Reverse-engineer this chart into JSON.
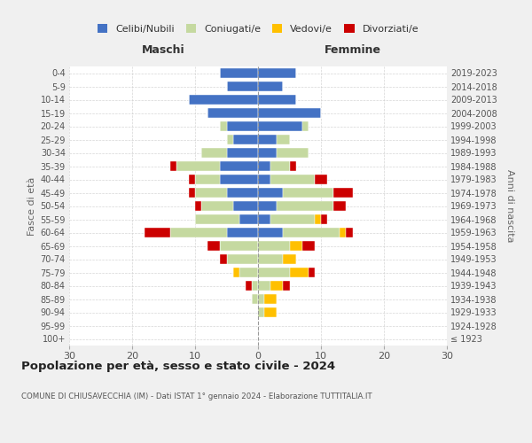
{
  "age_groups": [
    "100+",
    "95-99",
    "90-94",
    "85-89",
    "80-84",
    "75-79",
    "70-74",
    "65-69",
    "60-64",
    "55-59",
    "50-54",
    "45-49",
    "40-44",
    "35-39",
    "30-34",
    "25-29",
    "20-24",
    "15-19",
    "10-14",
    "5-9",
    "0-4"
  ],
  "birth_years": [
    "≤ 1923",
    "1924-1928",
    "1929-1933",
    "1934-1938",
    "1939-1943",
    "1944-1948",
    "1949-1953",
    "1954-1958",
    "1959-1963",
    "1964-1968",
    "1969-1973",
    "1974-1978",
    "1979-1983",
    "1984-1988",
    "1989-1993",
    "1994-1998",
    "1999-2003",
    "2004-2008",
    "2009-2013",
    "2014-2018",
    "2019-2023"
  ],
  "maschi": {
    "celibi": [
      0,
      0,
      0,
      0,
      0,
      0,
      0,
      0,
      5,
      3,
      4,
      5,
      6,
      6,
      5,
      4,
      5,
      8,
      11,
      5,
      6
    ],
    "coniugati": [
      0,
      0,
      0,
      1,
      1,
      3,
      5,
      6,
      9,
      7,
      5,
      5,
      4,
      7,
      4,
      1,
      1,
      0,
      0,
      0,
      0
    ],
    "vedovi": [
      0,
      0,
      0,
      0,
      0,
      1,
      0,
      0,
      0,
      0,
      0,
      0,
      0,
      0,
      0,
      0,
      0,
      0,
      0,
      0,
      0
    ],
    "divorziati": [
      0,
      0,
      0,
      0,
      1,
      0,
      1,
      2,
      4,
      0,
      1,
      1,
      1,
      1,
      0,
      0,
      0,
      0,
      0,
      0,
      0
    ]
  },
  "femmine": {
    "nubili": [
      0,
      0,
      0,
      0,
      0,
      0,
      0,
      0,
      4,
      2,
      3,
      4,
      2,
      2,
      3,
      3,
      7,
      10,
      6,
      4,
      6
    ],
    "coniugate": [
      0,
      0,
      1,
      1,
      2,
      5,
      4,
      5,
      9,
      7,
      9,
      8,
      7,
      3,
      5,
      2,
      1,
      0,
      0,
      0,
      0
    ],
    "vedove": [
      0,
      0,
      2,
      2,
      2,
      3,
      2,
      2,
      1,
      1,
      0,
      0,
      0,
      0,
      0,
      0,
      0,
      0,
      0,
      0,
      0
    ],
    "divorziate": [
      0,
      0,
      0,
      0,
      1,
      1,
      0,
      2,
      1,
      1,
      2,
      3,
      2,
      1,
      0,
      0,
      0,
      0,
      0,
      0,
      0
    ]
  },
  "colors": {
    "celibi": "#4472c4",
    "coniugati": "#c5d9a0",
    "vedovi": "#ffc000",
    "divorziati": "#cc0000"
  },
  "title": "Popolazione per età, sesso e stato civile - 2024",
  "subtitle": "COMUNE DI CHIUSAVECCHIA (IM) - Dati ISTAT 1° gennaio 2024 - Elaborazione TUTTITALIA.IT",
  "xlabel_maschi": "Maschi",
  "xlabel_femmine": "Femmine",
  "ylabel_left": "Fasce di età",
  "ylabel_right": "Anni di nascita",
  "xlim": 30,
  "legend_labels": [
    "Celibi/Nubili",
    "Coniugati/e",
    "Vedovi/e",
    "Divorziati/e"
  ],
  "bg_color": "#f0f0f0",
  "plot_bg": "#ffffff",
  "grid_color": "#cccccc"
}
